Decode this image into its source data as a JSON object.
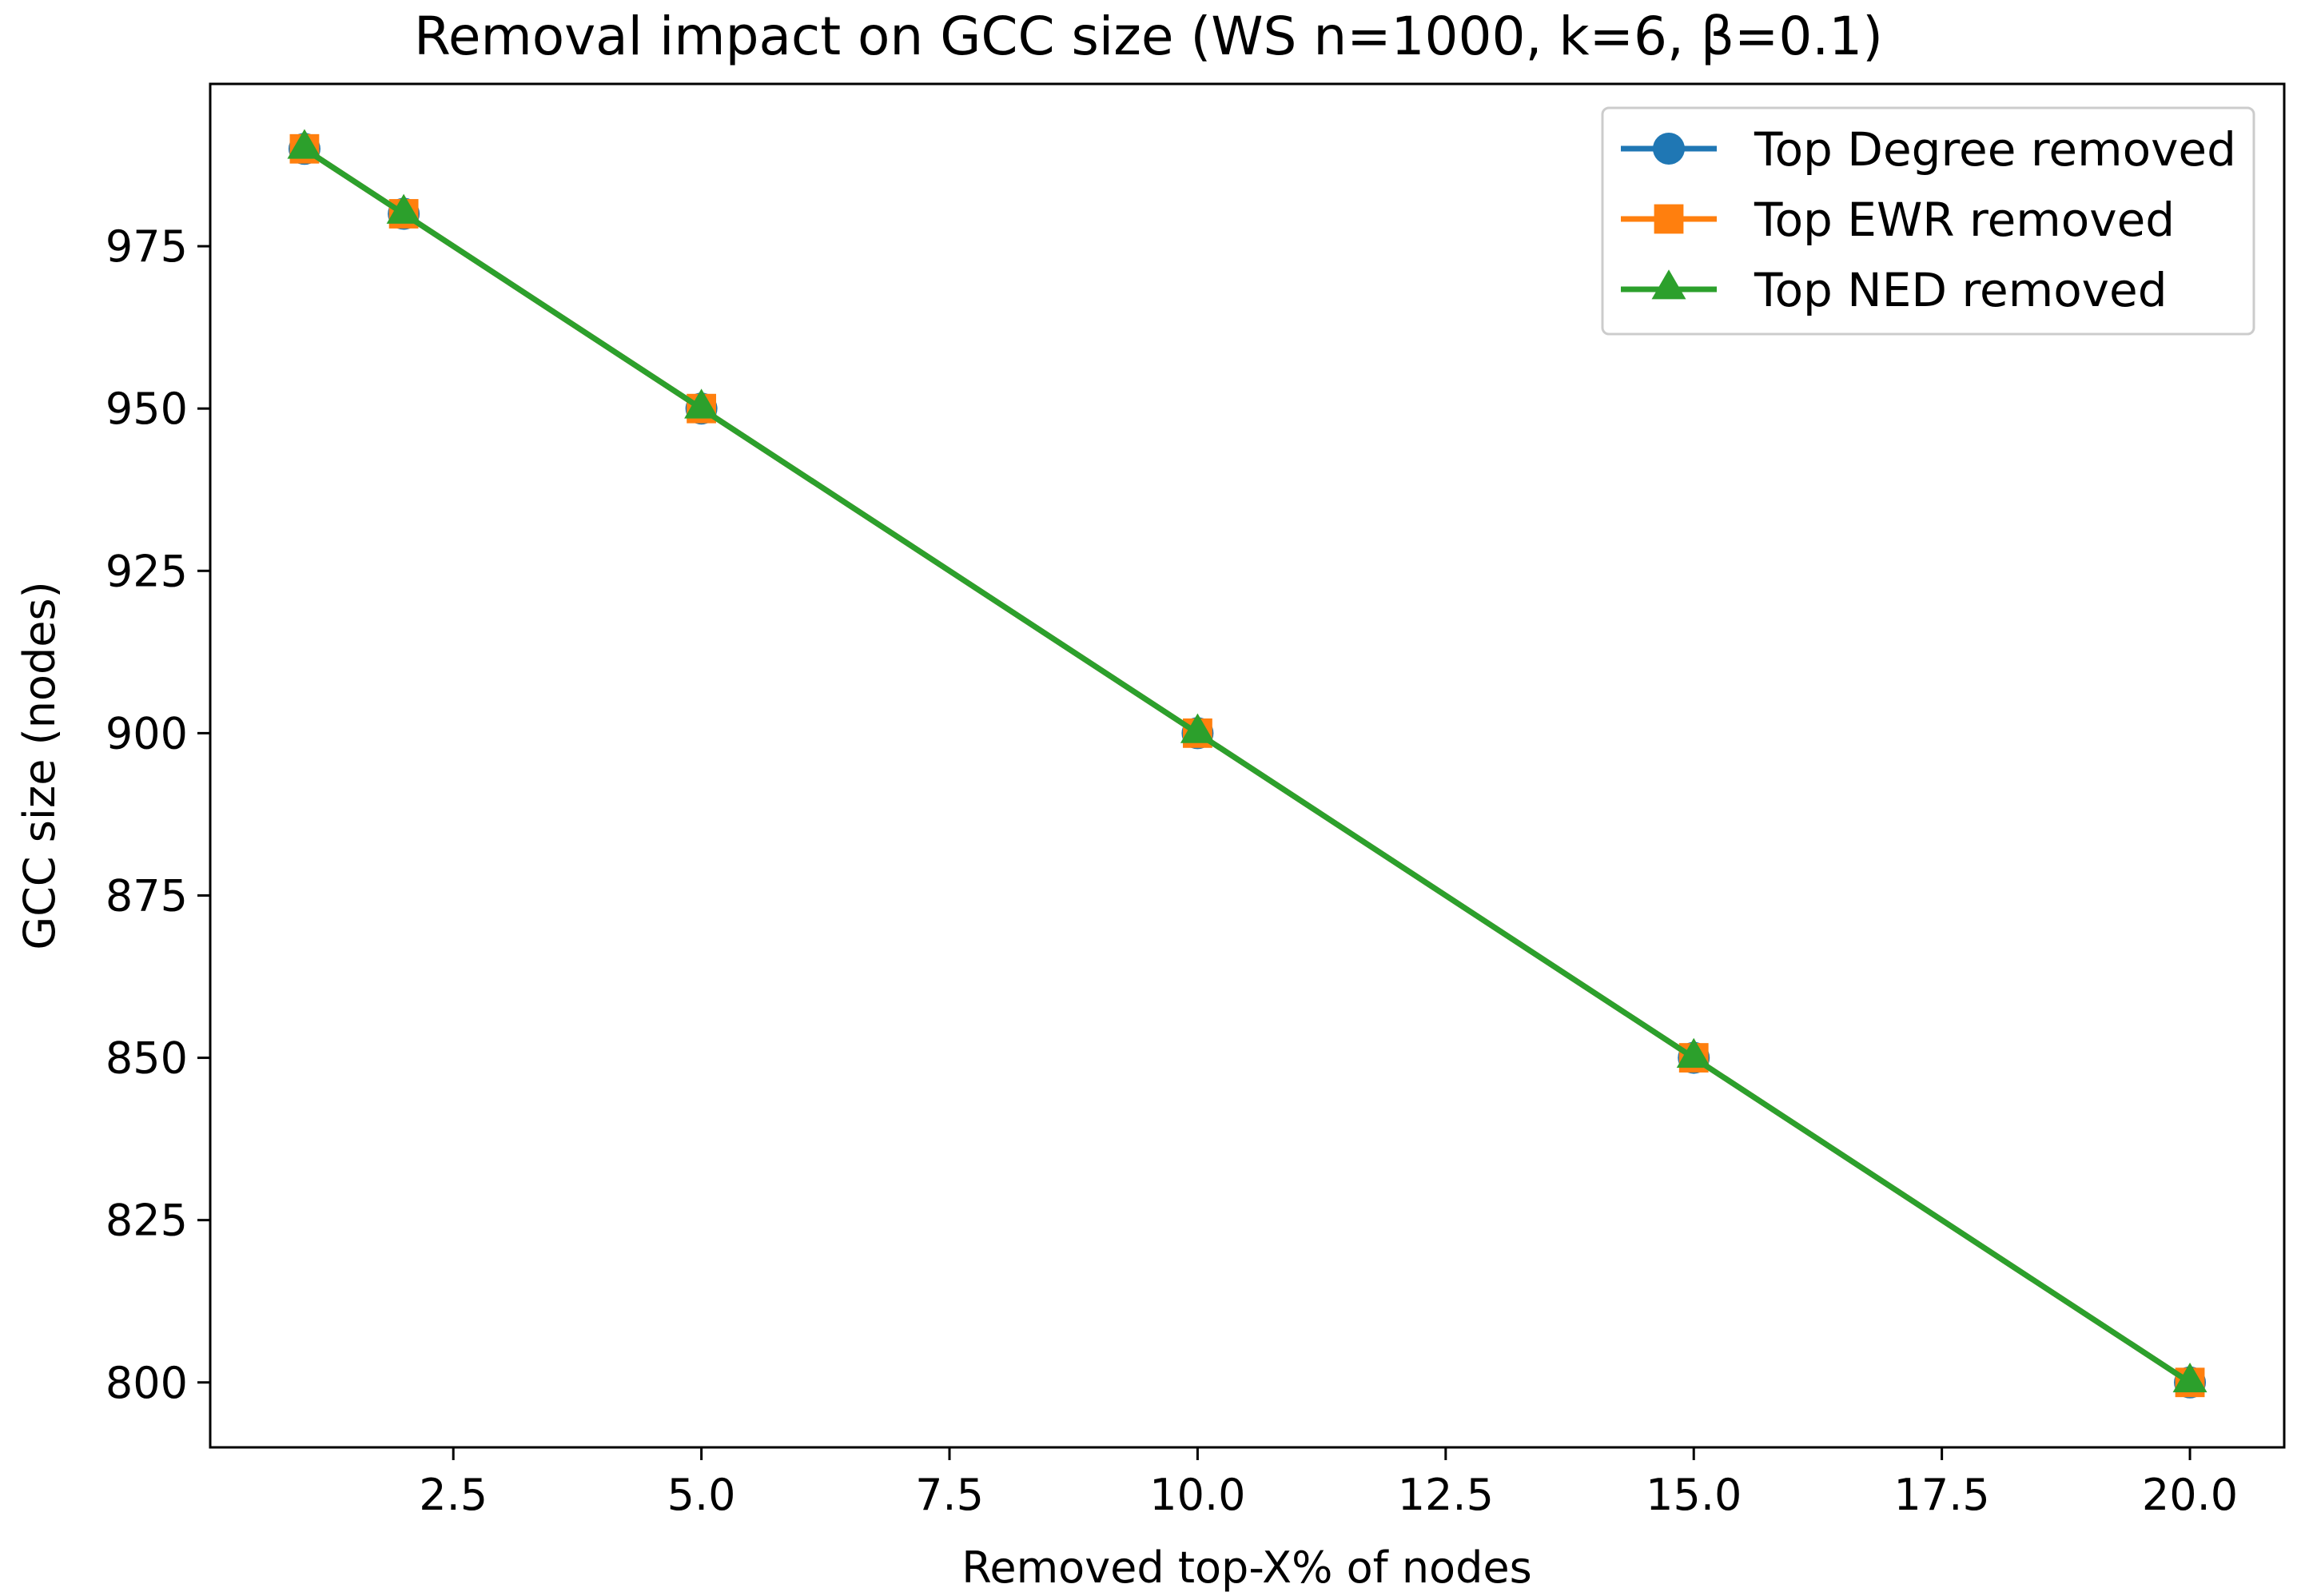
{
  "chart_data": {
    "type": "line",
    "title": "Removal impact on GCC size (WS n=1000, k=6, β=0.1)",
    "xlabel": "Removed top-X% of nodes",
    "ylabel": "GCC size (nodes)",
    "x": [
      1,
      2,
      5,
      10,
      15,
      20
    ],
    "xlim": [
      0.05,
      20.95
    ],
    "ylim": [
      790,
      1000
    ],
    "xticks": [
      2.5,
      5.0,
      7.5,
      10.0,
      12.5,
      15.0,
      17.5,
      20.0
    ],
    "xtick_labels": [
      "2.5",
      "5.0",
      "7.5",
      "10.0",
      "12.5",
      "15.0",
      "17.5",
      "20.0"
    ],
    "yticks": [
      800,
      825,
      850,
      875,
      900,
      925,
      950,
      975
    ],
    "ytick_labels": [
      "800",
      "825",
      "850",
      "875",
      "900",
      "925",
      "950",
      "975"
    ],
    "grid": false,
    "legend_position": "top-right",
    "series": [
      {
        "name": "Top Degree removed",
        "values": [
          990,
          980,
          950,
          900,
          850,
          800
        ],
        "color": "#1f77b4",
        "marker": "circle"
      },
      {
        "name": "Top EWR removed",
        "values": [
          990,
          980,
          950,
          900,
          850,
          800
        ],
        "color": "#ff7f0e",
        "marker": "square"
      },
      {
        "name": "Top NED removed",
        "values": [
          990,
          980,
          950,
          900,
          850,
          800
        ],
        "color": "#2ca02c",
        "marker": "triangle"
      }
    ]
  }
}
